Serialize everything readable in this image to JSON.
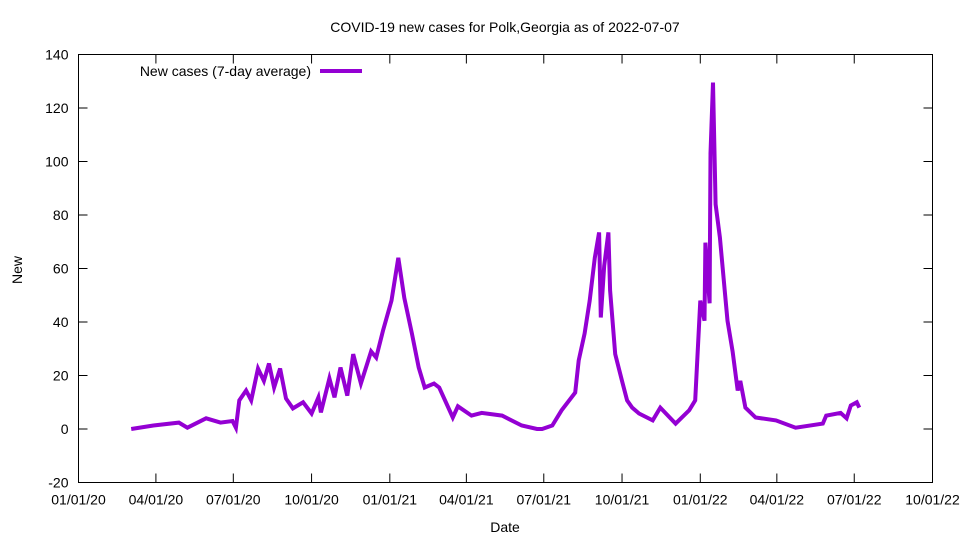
{
  "chart_data": {
    "type": "line",
    "title": "COVID-19 new cases for Polk,Georgia as of 2022-07-07",
    "xlabel": "Date",
    "ylabel": "New",
    "xlim": [
      "2020-01-01",
      "2022-10-01"
    ],
    "ylim": [
      -20,
      140
    ],
    "y_ticks": [
      -20,
      0,
      20,
      40,
      60,
      80,
      100,
      120,
      140
    ],
    "x_ticks": [
      {
        "date": "2020-01-01",
        "label": "01/01/20"
      },
      {
        "date": "2020-04-01",
        "label": "04/01/20"
      },
      {
        "date": "2020-07-01",
        "label": "07/01/20"
      },
      {
        "date": "2020-10-01",
        "label": "10/01/20"
      },
      {
        "date": "2021-01-01",
        "label": "01/01/21"
      },
      {
        "date": "2021-04-01",
        "label": "04/01/21"
      },
      {
        "date": "2021-07-01",
        "label": "07/01/21"
      },
      {
        "date": "2021-10-01",
        "label": "10/01/21"
      },
      {
        "date": "2022-01-01",
        "label": "01/01/22"
      },
      {
        "date": "2022-04-01",
        "label": "04/01/22"
      },
      {
        "date": "2022-07-01",
        "label": "07/01/22"
      },
      {
        "date": "2022-10-01",
        "label": "10/01/22"
      }
    ],
    "legend_position": "top-left",
    "grid": false,
    "series": [
      {
        "name": "New cases (7-day average)",
        "color": "#9400d3",
        "points": [
          [
            "2020-03-03",
            0
          ],
          [
            "2020-03-29",
            1.3
          ],
          [
            "2020-04-28",
            2.4
          ],
          [
            "2020-05-08",
            0.5
          ],
          [
            "2020-05-30",
            4
          ],
          [
            "2020-06-16",
            2.4
          ],
          [
            "2020-06-30",
            3
          ],
          [
            "2020-07-04",
            0.5
          ],
          [
            "2020-07-08",
            10.7
          ],
          [
            "2020-07-16",
            14.4
          ],
          [
            "2020-07-22",
            10.7
          ],
          [
            "2020-07-30",
            22.6
          ],
          [
            "2020-08-06",
            18
          ],
          [
            "2020-08-12",
            24.5
          ],
          [
            "2020-08-18",
            15.5
          ],
          [
            "2020-08-25",
            22.6
          ],
          [
            "2020-09-01",
            11.4
          ],
          [
            "2020-09-09",
            7.7
          ],
          [
            "2020-09-21",
            10
          ],
          [
            "2020-10-01",
            5.8
          ],
          [
            "2020-10-09",
            11.8
          ],
          [
            "2020-10-12",
            6.2
          ],
          [
            "2020-10-22",
            18.9
          ],
          [
            "2020-10-28",
            11.8
          ],
          [
            "2020-11-04",
            23
          ],
          [
            "2020-11-12",
            12.5
          ],
          [
            "2020-11-19",
            28
          ],
          [
            "2020-11-28",
            17
          ],
          [
            "2020-12-10",
            29
          ],
          [
            "2020-12-16",
            26.7
          ],
          [
            "2020-12-24",
            36.8
          ],
          [
            "2021-01-03",
            48
          ],
          [
            "2021-01-11",
            64
          ],
          [
            "2021-01-18",
            49
          ],
          [
            "2021-01-27",
            35.7
          ],
          [
            "2021-02-04",
            23
          ],
          [
            "2021-02-11",
            15.5
          ],
          [
            "2021-02-22",
            17
          ],
          [
            "2021-02-28",
            15.5
          ],
          [
            "2021-03-16",
            4.3
          ],
          [
            "2021-03-22",
            8.5
          ],
          [
            "2021-04-07",
            5
          ],
          [
            "2021-04-19",
            6
          ],
          [
            "2021-05-13",
            5
          ],
          [
            "2021-06-05",
            1.3
          ],
          [
            "2021-06-23",
            0
          ],
          [
            "2021-06-29",
            0
          ],
          [
            "2021-07-11",
            1.3
          ],
          [
            "2021-07-22",
            7
          ],
          [
            "2021-08-07",
            13.6
          ],
          [
            "2021-08-11",
            25.6
          ],
          [
            "2021-08-18",
            35.7
          ],
          [
            "2021-08-24",
            48
          ],
          [
            "2021-08-30",
            64
          ],
          [
            "2021-09-04",
            73.5
          ],
          [
            "2021-09-06",
            41.7
          ],
          [
            "2021-09-10",
            61
          ],
          [
            "2021-09-15",
            73.5
          ],
          [
            "2021-09-17",
            51.8
          ],
          [
            "2021-09-23",
            28
          ],
          [
            "2021-10-01",
            18
          ],
          [
            "2021-10-07",
            10.7
          ],
          [
            "2021-10-13",
            8
          ],
          [
            "2021-10-21",
            5.8
          ],
          [
            "2021-11-06",
            3.2
          ],
          [
            "2021-11-15",
            8
          ],
          [
            "2021-12-03",
            2
          ],
          [
            "2021-12-19",
            7
          ],
          [
            "2021-12-26",
            10.7
          ],
          [
            "2022-01-01",
            48
          ],
          [
            "2022-01-06",
            40.5
          ],
          [
            "2022-01-07",
            69.7
          ],
          [
            "2022-01-12",
            47
          ],
          [
            "2022-01-13",
            103
          ],
          [
            "2022-01-16",
            129.5
          ],
          [
            "2022-01-19",
            84
          ],
          [
            "2022-01-24",
            71.6
          ],
          [
            "2022-01-30",
            50.6
          ],
          [
            "2022-02-02",
            40.5
          ],
          [
            "2022-02-08",
            29
          ],
          [
            "2022-02-14",
            14.4
          ],
          [
            "2022-02-17",
            18
          ],
          [
            "2022-02-23",
            8
          ],
          [
            "2022-03-07",
            4.3
          ],
          [
            "2022-03-31",
            3.2
          ],
          [
            "2022-04-23",
            0.5
          ],
          [
            "2022-05-25",
            2
          ],
          [
            "2022-05-29",
            5
          ],
          [
            "2022-06-15",
            6
          ],
          [
            "2022-06-22",
            4
          ],
          [
            "2022-06-27",
            8.8
          ],
          [
            "2022-07-04",
            10
          ],
          [
            "2022-07-07",
            8
          ]
        ]
      }
    ]
  }
}
